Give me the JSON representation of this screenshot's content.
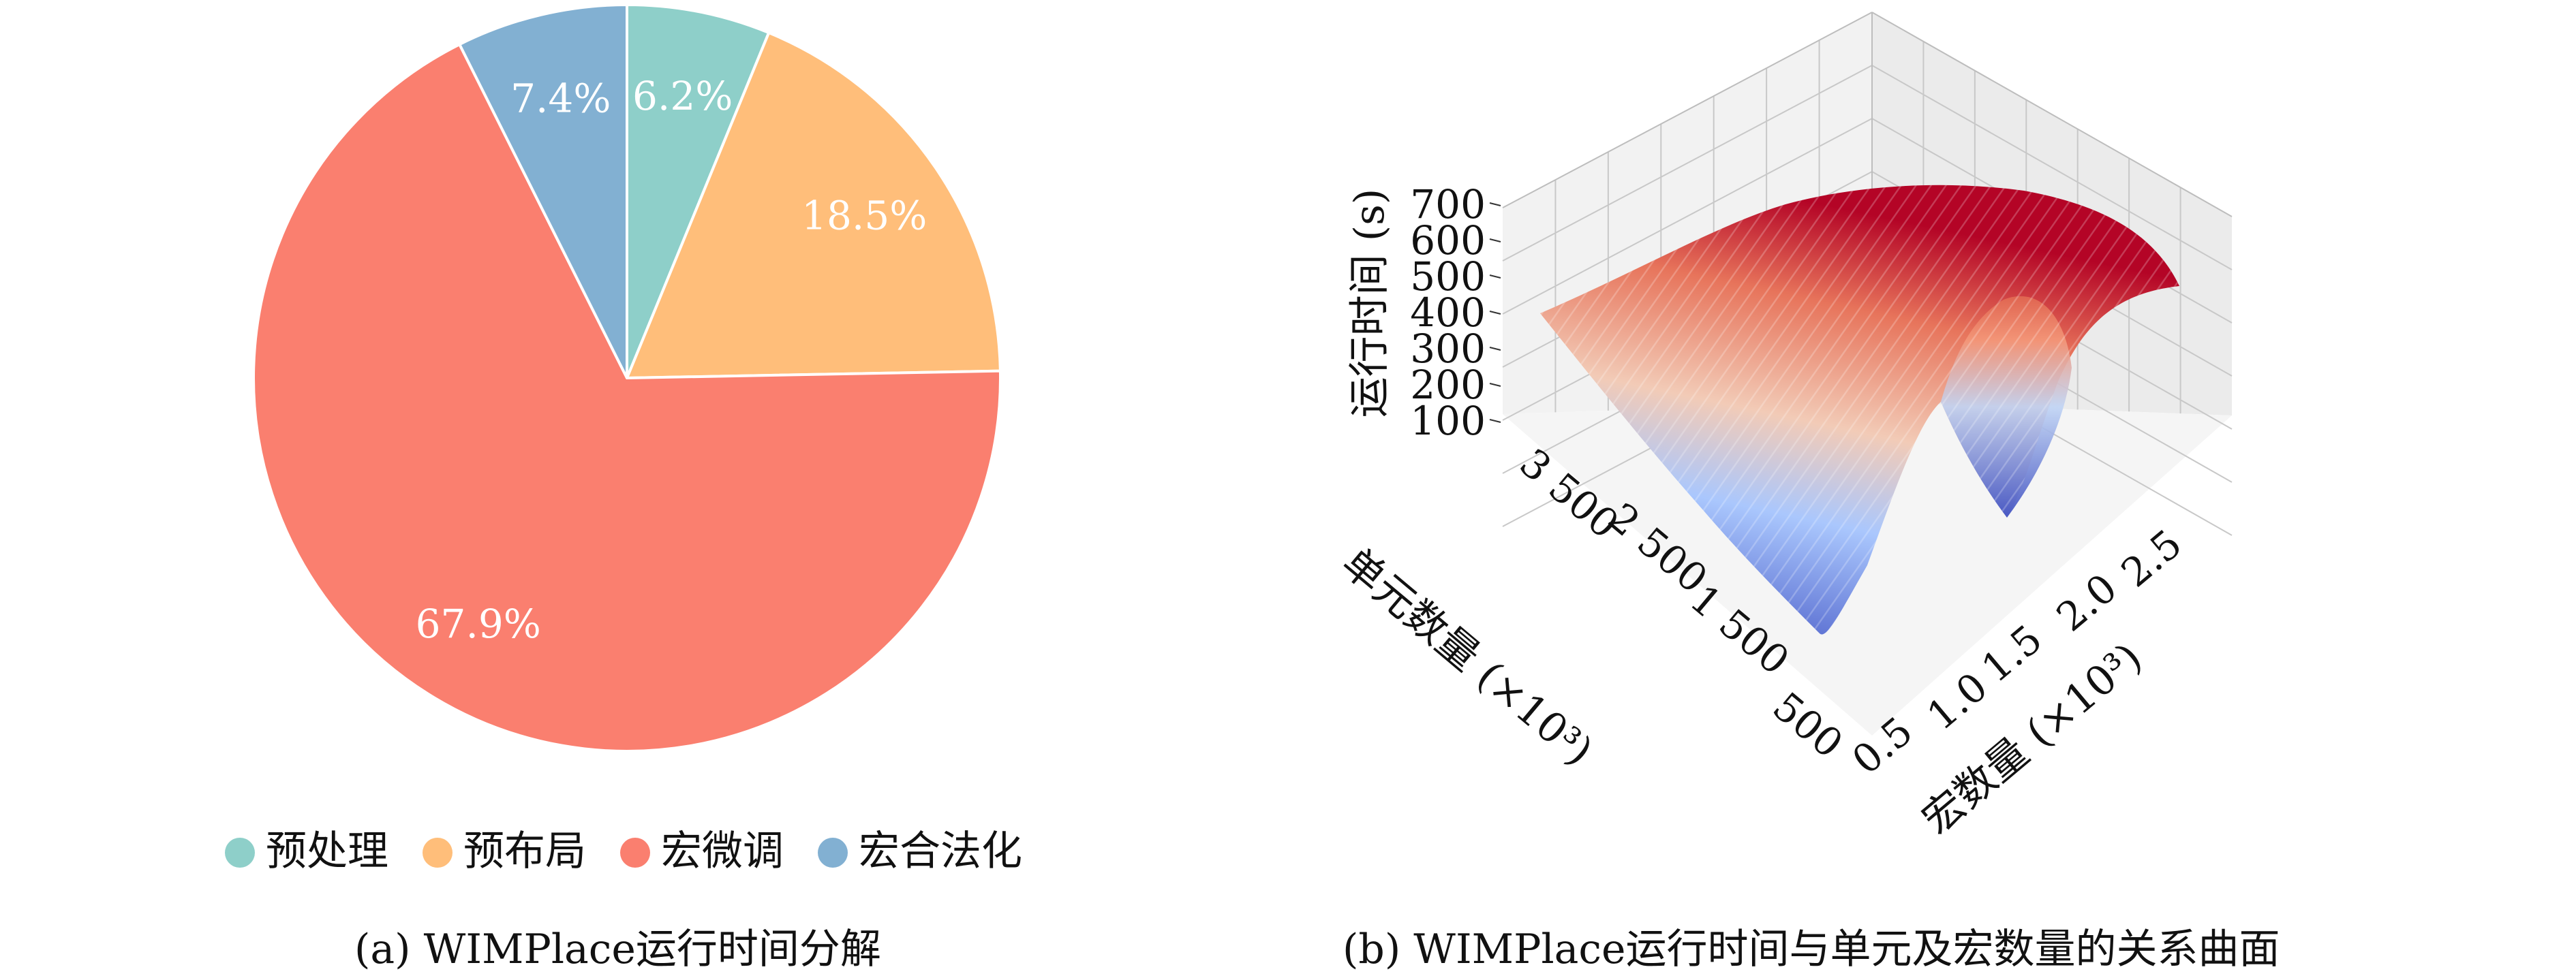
{
  "chart_data": [
    {
      "type": "pie",
      "caption": "(a) WIMPlace运行时间分解",
      "start_angle_deg": 90,
      "direction": "clockwise",
      "legend_position": "bottom",
      "slices": [
        {
          "label": "预处理",
          "value": 6.2,
          "pct_label": "6.2%",
          "color": "#8ECFC9"
        },
        {
          "label": "预布局",
          "value": 18.5,
          "pct_label": "18.5%",
          "color": "#FFBE7A"
        },
        {
          "label": "宏微调",
          "value": 67.9,
          "pct_label": "67.9%",
          "color": "#FA7F6F"
        },
        {
          "label": "宏合法化",
          "value": 7.4,
          "pct_label": "7.4%",
          "color": "#82B0D2"
        }
      ]
    },
    {
      "type": "surface3d",
      "caption": "(b) WIMPlace运行时间与单元及宏数量的关系曲面",
      "colormap": "coolwarm",
      "zlabel": "运行时间 (s)",
      "ylabel": "单元数量 (×10³)",
      "xlabel": "宏数量 (×10³)",
      "zticks": [
        "100",
        "200",
        "300",
        "400",
        "500",
        "600",
        "700"
      ],
      "yticks": [
        "500",
        "1 500",
        "2 500",
        "3 500"
      ],
      "xticks": [
        "0.5",
        "1.0",
        "1.5",
        "2.0",
        "2.5"
      ],
      "zlim": [
        100,
        700
      ]
    }
  ]
}
